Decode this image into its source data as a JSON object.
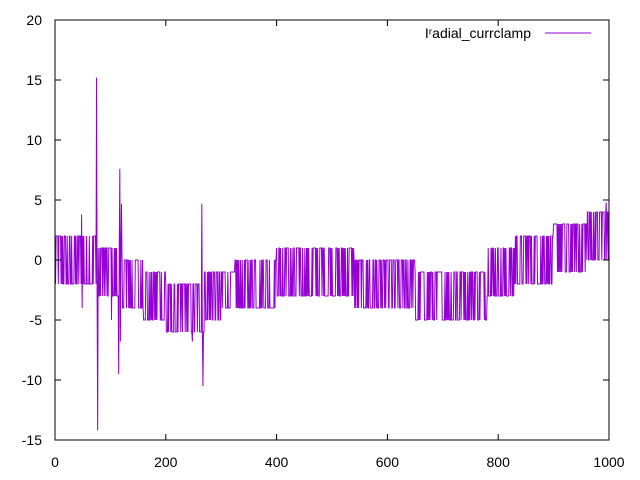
{
  "chart_data": {
    "type": "line",
    "title": "",
    "xlabel": "",
    "ylabel": "",
    "xlim": [
      0,
      1000
    ],
    "ylim": [
      -15,
      20
    ],
    "x_ticks": [
      0,
      200,
      400,
      600,
      800,
      1000
    ],
    "y_ticks": [
      -15,
      -10,
      -5,
      0,
      5,
      10,
      15,
      20
    ],
    "grid": false,
    "legend_position": "top-right",
    "series": [
      {
        "name": "Iʳadial_currclamp",
        "color": "#9400d3",
        "segments": [
          {
            "x": [
              0,
              75
            ],
            "low": -2,
            "high": 2
          },
          {
            "x": [
              75,
              120
            ],
            "low": -3,
            "high": 1
          },
          {
            "x": [
              120,
              160
            ],
            "low": -4,
            "high": 0
          },
          {
            "x": [
              160,
              200
            ],
            "low": -5,
            "high": -1
          },
          {
            "x": [
              200,
              270
            ],
            "low": -6,
            "high": -2
          },
          {
            "x": [
              270,
              300
            ],
            "low": -5,
            "high": -1
          },
          {
            "x": [
              300,
              325
            ],
            "low": -4,
            "high": -1
          },
          {
            "x": [
              325,
              400
            ],
            "low": -4,
            "high": 0
          },
          {
            "x": [
              400,
              540
            ],
            "low": -3,
            "high": 1
          },
          {
            "x": [
              540,
              650
            ],
            "low": -4,
            "high": 0
          },
          {
            "x": [
              650,
              700
            ],
            "low": -5,
            "high": -1
          },
          {
            "x": [
              700,
              780
            ],
            "low": -5,
            "high": -1
          },
          {
            "x": [
              780,
              830
            ],
            "low": -3,
            "high": 1
          },
          {
            "x": [
              830,
              900
            ],
            "low": -2,
            "high": 2
          },
          {
            "x": [
              900,
              960
            ],
            "low": -1,
            "high": 3
          },
          {
            "x": [
              960,
              1000
            ],
            "low": 0,
            "high": 4
          }
        ],
        "spikes": [
          {
            "x": 48,
            "y": 3.8
          },
          {
            "x": 49,
            "y": -4
          },
          {
            "x": 75,
            "y": 15.2
          },
          {
            "x": 77,
            "y": -14.2
          },
          {
            "x": 102,
            "y": -5
          },
          {
            "x": 115,
            "y": -9.5
          },
          {
            "x": 117,
            "y": 7.6
          },
          {
            "x": 118,
            "y": -6.8
          },
          {
            "x": 120,
            "y": 4.7
          },
          {
            "x": 248,
            "y": -6.8
          },
          {
            "x": 265,
            "y": 4.7
          },
          {
            "x": 267,
            "y": -10.5
          },
          {
            "x": 995,
            "y": 4.8
          }
        ]
      }
    ]
  }
}
